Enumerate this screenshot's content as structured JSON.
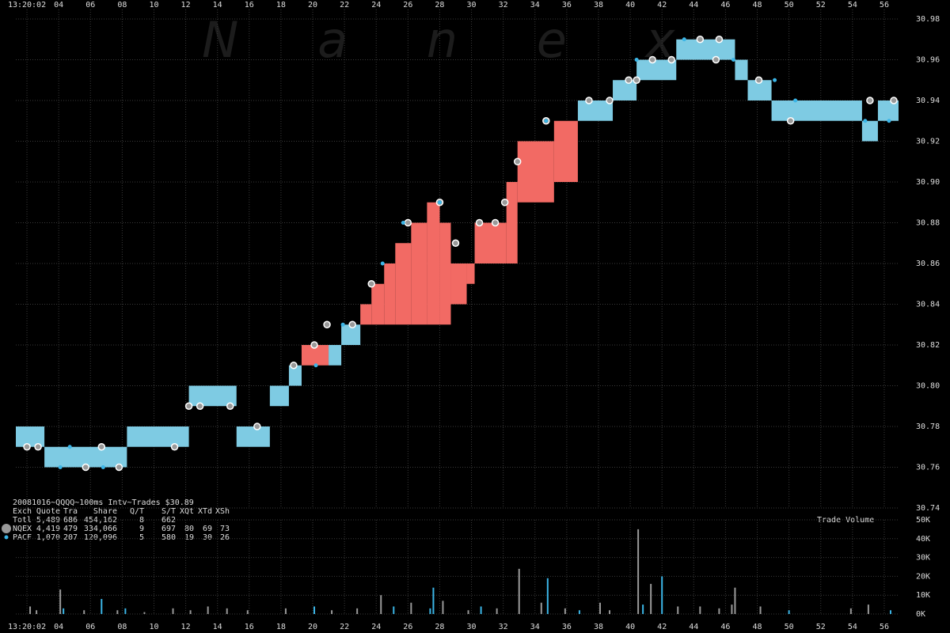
{
  "chart_data": [
    {
      "type": "quote",
      "watermark": "N a n e x",
      "xlim": [
        1.3,
        56.9
      ],
      "ylim": [
        30.74,
        30.98
      ],
      "xticks": [
        {
          "value": 2,
          "label": "13:20:02"
        },
        {
          "value": 4,
          "label": "04"
        },
        {
          "value": 6,
          "label": "06"
        },
        {
          "value": 8,
          "label": "08"
        },
        10,
        12,
        14,
        16,
        18,
        20,
        22,
        24,
        26,
        28,
        30,
        32,
        34,
        36,
        38,
        40,
        42,
        44,
        46,
        48,
        50,
        52,
        54,
        56
      ],
      "yticks": [
        30.74,
        30.76,
        30.78,
        {
          "value": 30.8,
          "label": "30.80"
        },
        30.82,
        30.84,
        30.86,
        30.88,
        {
          "value": 30.9,
          "label": "30.90"
        },
        30.92,
        30.94,
        30.96,
        30.98
      ],
      "grid": true,
      "band": {
        "x": [
          1.3,
          3.1,
          8.3,
          12.2,
          15.2,
          17.3,
          18.5,
          19.3,
          21.0,
          21.8,
          23.0,
          23.7,
          24.5,
          25.2,
          26.2,
          27.2,
          28.0,
          28.7,
          29.7,
          30.2,
          32.2,
          32.9,
          35.2,
          36.7,
          38.9,
          40.4,
          42.9,
          46.6,
          47.4,
          48.9,
          54.6,
          55.6
        ],
        "low": [
          30.77,
          30.76,
          30.77,
          30.79,
          30.77,
          30.79,
          30.8,
          30.81,
          30.81,
          30.82,
          30.83,
          30.83,
          30.83,
          30.83,
          30.83,
          30.83,
          30.83,
          30.84,
          30.85,
          30.86,
          30.86,
          30.89,
          30.9,
          30.93,
          30.94,
          30.95,
          30.96,
          30.95,
          30.94,
          30.93,
          30.92,
          30.93
        ],
        "high": [
          30.78,
          30.77,
          30.78,
          30.8,
          30.78,
          30.8,
          30.81,
          30.82,
          30.82,
          30.83,
          30.84,
          30.85,
          30.86,
          30.87,
          30.88,
          30.89,
          30.88,
          30.86,
          30.86,
          30.88,
          30.9,
          30.92,
          30.93,
          30.94,
          30.95,
          30.96,
          30.97,
          30.96,
          30.95,
          30.94,
          30.93,
          30.94
        ],
        "colors": [
          "#7ecbe3",
          "#7ecbe3",
          "#7ecbe3",
          "#7ecbe3",
          "#7ecbe3",
          "#7ecbe3",
          "#7ecbe3",
          "#f26a64",
          "#7ecbe3",
          "#7ecbe3",
          "#f26a64",
          "#f26a64",
          "#f26a64",
          "#f26a64",
          "#f26a64",
          "#f26a64",
          "#f26a64",
          "#f26a64",
          "#f26a64",
          "#f26a64",
          "#f26a64",
          "#f26a64",
          "#f26a64",
          "#7ecbe3",
          "#7ecbe3",
          "#7ecbe3",
          "#7ecbe3",
          "#7ecbe3",
          "#7ecbe3",
          "#7ecbe3",
          "#7ecbe3",
          "#7ecbe3"
        ]
      },
      "summary": {
        "title": "20081016~QQQQ~100ms Intv~Trades $30.89",
        "columns": [
          "Exch",
          "Quote",
          "Tra",
          "Share",
          "Q/T",
          "S/T",
          "XQt",
          "XTd",
          "XSh"
        ],
        "total": [
          "Totl",
          "5,489",
          "686",
          "454,162",
          "8",
          "662"
        ]
      },
      "series": [
        {
          "name": "NQEX",
          "color": "#999999",
          "stats": [
            "4,419",
            "479",
            "334,066",
            "9",
            "697",
            "80",
            "69",
            "73"
          ],
          "x": [
            2.0,
            2.7,
            5.7,
            6.7,
            7.8,
            11.3,
            12.2,
            12.9,
            14.8,
            16.5,
            18.8,
            20.1,
            20.9,
            22.5,
            23.7,
            26.0,
            28.0,
            29.0,
            30.5,
            31.5,
            32.1,
            32.9,
            34.7,
            37.4,
            38.7,
            39.9,
            40.4,
            41.4,
            42.6,
            44.4,
            45.4,
            45.6,
            48.1,
            50.1,
            55.1,
            56.6
          ],
          "values": [
            30.77,
            30.77,
            30.76,
            30.77,
            30.76,
            30.77,
            30.79,
            30.79,
            30.79,
            30.78,
            30.81,
            30.82,
            30.83,
            30.83,
            30.85,
            30.88,
            30.89,
            30.87,
            30.88,
            30.88,
            30.89,
            30.91,
            30.93,
            30.94,
            30.94,
            30.95,
            30.95,
            30.96,
            30.96,
            30.97,
            30.96,
            30.97,
            30.95,
            30.93,
            30.94,
            30.94
          ]
        },
        {
          "name": "PACF",
          "color": "#3bb5e6",
          "stats": [
            "1,070",
            "207",
            "120,096",
            "5",
            "580",
            "19",
            "30",
            "26"
          ],
          "x": [
            4.1,
            4.7,
            6.8,
            20.2,
            21.9,
            24.4,
            25.7,
            28.0,
            34.7,
            40.4,
            43.4,
            46.5,
            49.1,
            50.4,
            54.8,
            56.3
          ],
          "values": [
            30.76,
            30.77,
            30.76,
            30.81,
            30.83,
            30.86,
            30.88,
            30.89,
            30.93,
            30.96,
            30.97,
            30.96,
            30.95,
            30.94,
            30.93,
            30.93
          ]
        }
      ]
    },
    {
      "type": "bar",
      "title": "Trade Volume",
      "xlim": [
        1.3,
        56.9
      ],
      "ylim": [
        0,
        50000
      ],
      "xticks": [
        {
          "value": 2,
          "label": "13:20:02"
        },
        {
          "value": 4,
          "label": "04"
        },
        {
          "value": 6,
          "label": "06"
        },
        {
          "value": 8,
          "label": "08"
        },
        10,
        12,
        14,
        16,
        18,
        20,
        22,
        24,
        26,
        28,
        30,
        32,
        34,
        36,
        38,
        40,
        42,
        44,
        46,
        48,
        50,
        52,
        54,
        56
      ],
      "yticks": [
        {
          "value": 0,
          "label": "0K"
        },
        {
          "value": 10000,
          "label": "10K"
        },
        {
          "value": 20000,
          "label": "20K"
        },
        {
          "value": 30000,
          "label": "30K"
        },
        {
          "value": 40000,
          "label": "40K"
        },
        {
          "value": 50000,
          "label": "50K"
        }
      ],
      "grid": true,
      "x": [
        2.2,
        2.6,
        4.1,
        4.3,
        5.6,
        6.7,
        7.7,
        8.2,
        9.4,
        11.2,
        12.3,
        13.4,
        14.6,
        15.9,
        18.3,
        20.1,
        21.2,
        22.8,
        24.3,
        25.1,
        26.2,
        27.4,
        27.6,
        28.2,
        29.8,
        30.6,
        31.6,
        33.0,
        34.4,
        34.8,
        35.9,
        36.8,
        38.1,
        38.7,
        40.5,
        40.8,
        41.3,
        42.0,
        43.0,
        44.4,
        45.6,
        46.4,
        46.6,
        48.2,
        50.0,
        53.9,
        55.0,
        56.4
      ],
      "values": [
        4000,
        2000,
        13000,
        3000,
        2000,
        8000,
        2000,
        3000,
        1000,
        3000,
        2000,
        4000,
        3000,
        2000,
        3000,
        4000,
        2000,
        3000,
        10000,
        4000,
        6000,
        3000,
        14000,
        7000,
        2000,
        4000,
        3000,
        24000,
        6000,
        19000,
        3000,
        2000,
        6000,
        2000,
        45000,
        5000,
        16000,
        20000,
        4000,
        4000,
        3000,
        5000,
        14000,
        4000,
        2000,
        3000,
        5000,
        2000
      ],
      "colors": [
        "#999999",
        "#999999",
        "#999999",
        "#3bb5e6",
        "#999999",
        "#3bb5e6",
        "#999999",
        "#3bb5e6",
        "#999999",
        "#999999",
        "#999999",
        "#999999",
        "#999999",
        "#999999",
        "#999999",
        "#3bb5e6",
        "#999999",
        "#999999",
        "#999999",
        "#3bb5e6",
        "#999999",
        "#3bb5e6",
        "#3bb5e6",
        "#999999",
        "#999999",
        "#3bb5e6",
        "#999999",
        "#999999",
        "#999999",
        "#3bb5e6",
        "#999999",
        "#3bb5e6",
        "#999999",
        "#999999",
        "#999999",
        "#3bb5e6",
        "#999999",
        "#3bb5e6",
        "#999999",
        "#999999",
        "#999999",
        "#999999",
        "#999999",
        "#999999",
        "#3bb5e6",
        "#999999",
        "#999999",
        "#3bb5e6"
      ]
    }
  ]
}
